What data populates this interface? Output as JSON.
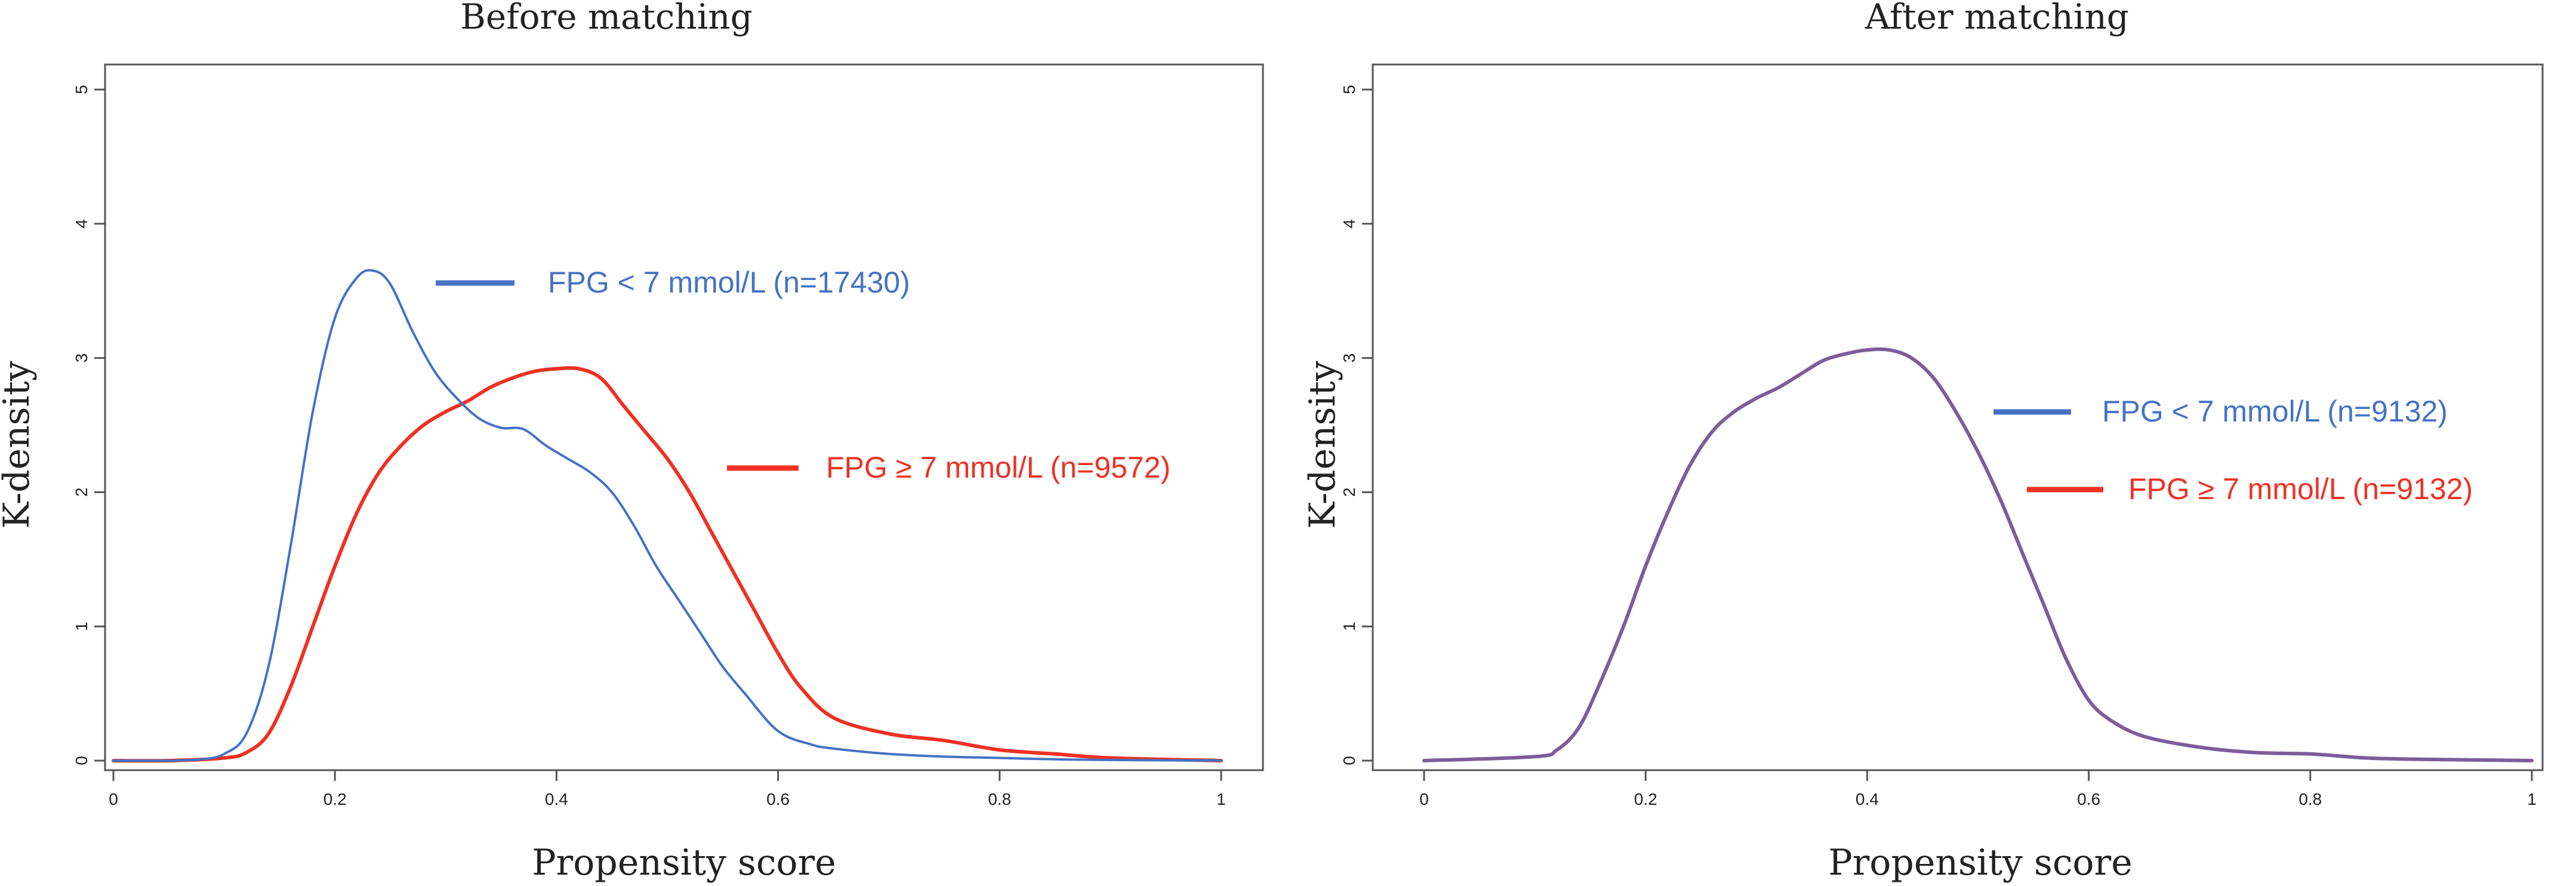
{
  "colors": {
    "blue": "#4472C4",
    "red": "#EE3124",
    "purple": "#7E5C9A",
    "frame": "#555555",
    "text": "#222222"
  },
  "chart_data": [
    {
      "type": "line",
      "title": "Before matching",
      "xlabel": "Propensity score",
      "ylabel": "K-density",
      "xlim": [
        0,
        1
      ],
      "ylim": [
        0,
        5
      ],
      "xticks": [
        "0",
        "0.2",
        "0.4",
        "0.6",
        "0.8",
        "1"
      ],
      "xtick_values": [
        0,
        0.2,
        0.4,
        0.6,
        0.8,
        1
      ],
      "yticks": [
        "0",
        "1",
        "2",
        "3",
        "4",
        "5"
      ],
      "ytick_values": [
        0,
        1,
        2,
        3,
        4,
        5
      ],
      "grid": false,
      "legend_position": "right",
      "series": [
        {
          "name": "FPG < 7 mmol/L (n=17430)",
          "color": "#4472C4",
          "x": [
            0,
            0.05,
            0.08,
            0.1,
            0.12,
            0.14,
            0.16,
            0.18,
            0.2,
            0.22,
            0.235,
            0.25,
            0.27,
            0.29,
            0.31,
            0.33,
            0.35,
            0.37,
            0.39,
            0.41,
            0.43,
            0.45,
            0.47,
            0.49,
            0.51,
            0.53,
            0.55,
            0.57,
            0.6,
            0.63,
            0.65,
            0.7,
            0.75,
            0.8,
            0.85,
            0.9,
            1.0
          ],
          "y": [
            0,
            0,
            0.01,
            0.05,
            0.2,
            0.7,
            1.6,
            2.6,
            3.3,
            3.6,
            3.65,
            3.55,
            3.2,
            2.9,
            2.7,
            2.55,
            2.48,
            2.47,
            2.35,
            2.25,
            2.15,
            2.0,
            1.75,
            1.45,
            1.2,
            0.95,
            0.7,
            0.5,
            0.22,
            0.12,
            0.09,
            0.05,
            0.03,
            0.02,
            0.01,
            0.005,
            0
          ]
        },
        {
          "name": "FPG ≥ 7 mmol/L (n=9572)",
          "color": "#EE3124",
          "x": [
            0,
            0.05,
            0.1,
            0.12,
            0.14,
            0.16,
            0.18,
            0.2,
            0.22,
            0.24,
            0.26,
            0.28,
            0.3,
            0.32,
            0.34,
            0.36,
            0.38,
            0.4,
            0.42,
            0.44,
            0.46,
            0.48,
            0.5,
            0.52,
            0.54,
            0.56,
            0.58,
            0.6,
            0.62,
            0.65,
            0.7,
            0.75,
            0.8,
            0.85,
            0.9,
            1.0
          ],
          "y": [
            0,
            0,
            0.02,
            0.06,
            0.2,
            0.55,
            1.0,
            1.45,
            1.85,
            2.15,
            2.35,
            2.5,
            2.6,
            2.68,
            2.78,
            2.85,
            2.9,
            2.92,
            2.92,
            2.85,
            2.65,
            2.45,
            2.25,
            2.0,
            1.7,
            1.4,
            1.1,
            0.8,
            0.55,
            0.32,
            0.2,
            0.15,
            0.08,
            0.05,
            0.02,
            0
          ]
        }
      ]
    },
    {
      "type": "line",
      "title": "After matching",
      "xlabel": "Propensity score",
      "ylabel": "K-density",
      "xlim": [
        0,
        1
      ],
      "ylim": [
        0,
        5
      ],
      "xticks": [
        "0",
        "0.2",
        "0.4",
        "0.6",
        "0.8",
        "1"
      ],
      "xtick_values": [
        0,
        0.2,
        0.4,
        0.6,
        0.8,
        1
      ],
      "yticks": [
        "0",
        "1",
        "2",
        "3",
        "4",
        "5"
      ],
      "ytick_values": [
        0,
        1,
        2,
        3,
        4,
        5
      ],
      "grid": false,
      "legend_position": "right",
      "series": [
        {
          "name": "FPG < 7 mmol/L (n=9132)",
          "color": "#4472C4",
          "x": [
            0,
            0.1,
            0.12,
            0.14,
            0.16,
            0.18,
            0.2,
            0.22,
            0.24,
            0.26,
            0.28,
            0.3,
            0.32,
            0.34,
            0.36,
            0.38,
            0.4,
            0.42,
            0.44,
            0.46,
            0.48,
            0.5,
            0.52,
            0.54,
            0.56,
            0.58,
            0.6,
            0.62,
            0.65,
            0.7,
            0.75,
            0.8,
            0.85,
            0.9,
            1.0
          ],
          "y": [
            0,
            0.03,
            0.08,
            0.25,
            0.6,
            1.0,
            1.45,
            1.85,
            2.2,
            2.45,
            2.6,
            2.7,
            2.78,
            2.88,
            2.98,
            3.03,
            3.06,
            3.06,
            3.0,
            2.85,
            2.6,
            2.3,
            1.95,
            1.55,
            1.15,
            0.75,
            0.45,
            0.3,
            0.18,
            0.1,
            0.06,
            0.05,
            0.02,
            0.01,
            0
          ]
        },
        {
          "name": "FPG ≥ 7 mmol/L (n=9132)",
          "color": "#EE3124",
          "x": [
            0,
            0.1,
            0.12,
            0.14,
            0.16,
            0.18,
            0.2,
            0.22,
            0.24,
            0.26,
            0.28,
            0.3,
            0.32,
            0.34,
            0.36,
            0.38,
            0.4,
            0.42,
            0.44,
            0.46,
            0.48,
            0.5,
            0.52,
            0.54,
            0.56,
            0.58,
            0.6,
            0.62,
            0.65,
            0.7,
            0.75,
            0.8,
            0.85,
            0.9,
            1.0
          ],
          "y": [
            0,
            0.03,
            0.08,
            0.25,
            0.6,
            1.0,
            1.45,
            1.85,
            2.2,
            2.45,
            2.6,
            2.7,
            2.78,
            2.88,
            2.98,
            3.03,
            3.06,
            3.06,
            3.0,
            2.85,
            2.6,
            2.3,
            1.95,
            1.55,
            1.15,
            0.75,
            0.45,
            0.3,
            0.18,
            0.1,
            0.06,
            0.05,
            0.02,
            0.01,
            0
          ]
        }
      ]
    }
  ]
}
